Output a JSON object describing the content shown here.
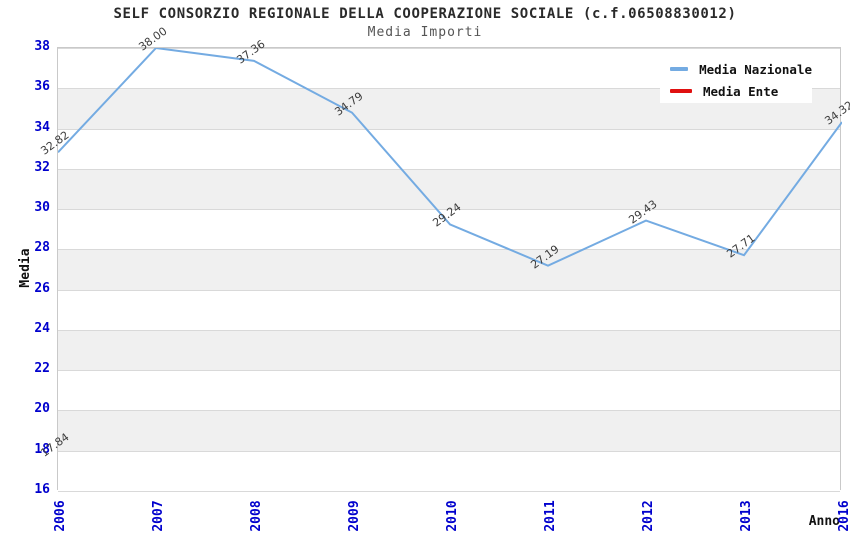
{
  "chart_data": {
    "type": "line",
    "title": "SELF CONSORZIO REGIONALE DELLA COOPERAZIONE SOCIALE (c.f.06508830012)",
    "subtitle": "Media Importi",
    "xlabel": "Anno",
    "ylabel": "Media",
    "categories": [
      "2006",
      "2007",
      "2008",
      "2009",
      "2010",
      "2011",
      "2012",
      "2013",
      "2016"
    ],
    "series": [
      {
        "name": "Media Nazionale",
        "color": "#74abe2",
        "values": [
          32.82,
          38.0,
          37.36,
          34.79,
          29.24,
          27.19,
          29.43,
          27.71,
          34.32
        ]
      },
      {
        "name": "Media Ente",
        "color": "#e01010",
        "values": [
          17.84,
          null,
          null,
          null,
          null,
          null,
          null,
          null,
          null
        ]
      }
    ],
    "ylim": [
      16,
      38
    ],
    "ytick_step": 2,
    "grid": "horizontal",
    "band_fill": "alternating",
    "legend_position": "top-right",
    "colors": {
      "axis_tick_labels": "#0000cd",
      "band_gray": "#f0f0f0",
      "grid_line": "#d9d9d9",
      "plot_border": "#c9c9c9",
      "title_text": "#2a2a2a",
      "subtitle_text": "#555555",
      "data_label_text": "#3c3c3c",
      "legend_background": "#ffffff"
    }
  }
}
